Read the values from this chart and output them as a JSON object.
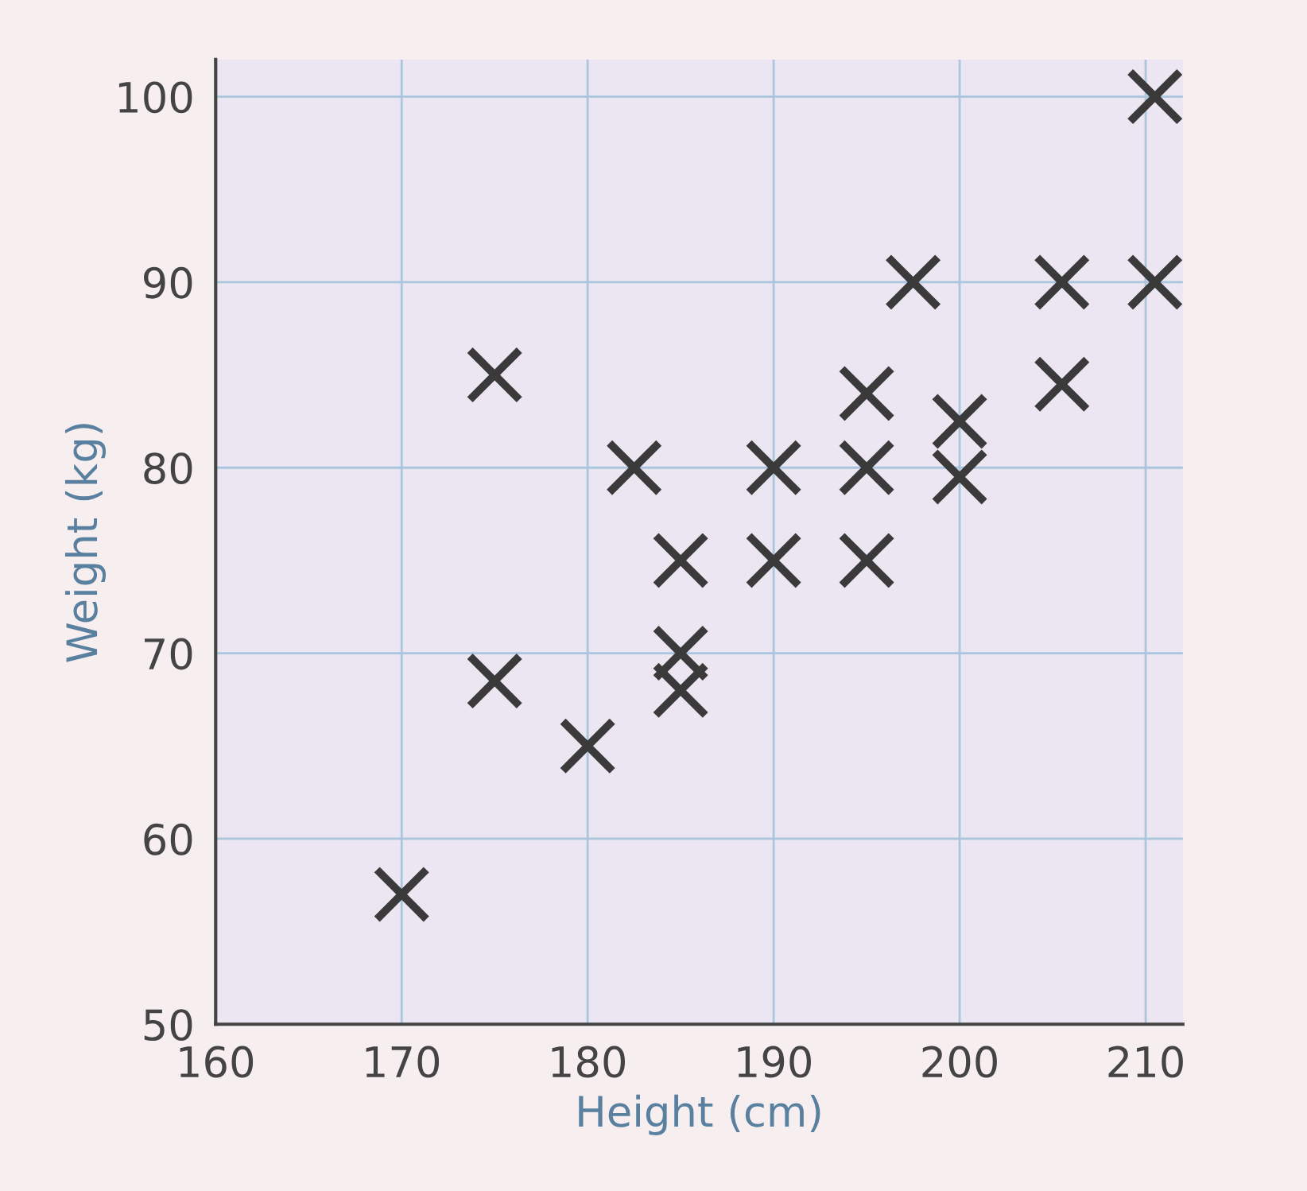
{
  "chart_data": {
    "type": "scatter",
    "xlabel": "Height (cm)",
    "ylabel": "Weight (kg)",
    "x": [
      170,
      175,
      175,
      180,
      182.5,
      185,
      185,
      185,
      190,
      190,
      195,
      195,
      195,
      197.5,
      200,
      200,
      205.5,
      205.5,
      210.5,
      210.5
    ],
    "series": [
      {
        "color": "#3a3a3a",
        "values": [
          57,
          85,
          68.5,
          65,
          80,
          75,
          70,
          68,
          80,
          75,
          84,
          80,
          75,
          90,
          82.5,
          79.5,
          84.5,
          90,
          90,
          100
        ]
      }
    ],
    "xlim": [
      160,
      212
    ],
    "ylim": [
      50,
      102
    ],
    "xticks": [
      160,
      170,
      180,
      190,
      200,
      210
    ],
    "yticks": [
      50,
      60,
      70,
      80,
      90,
      100
    ],
    "marker": "cross",
    "grid": true
  }
}
